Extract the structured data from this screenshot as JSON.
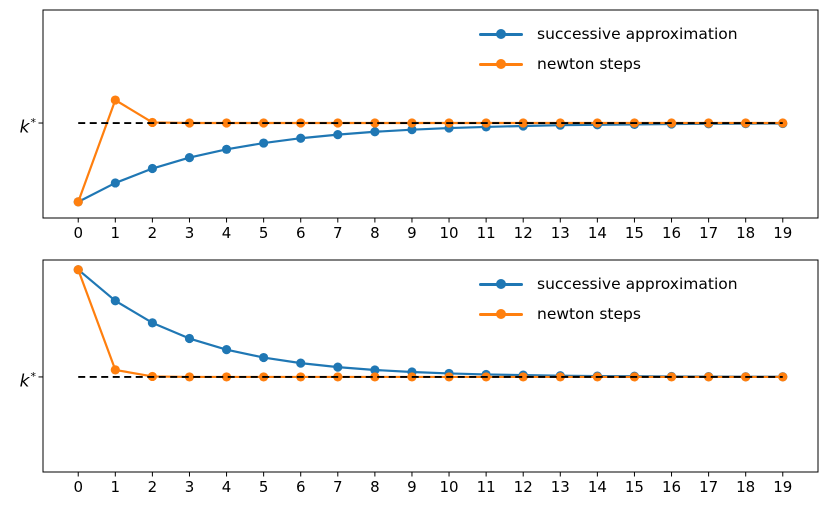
{
  "figure": {
    "background": "#ffffff",
    "text_color": "#000000",
    "ylabel_base": "k",
    "ylabel_sup": "*"
  },
  "chart_data": [
    {
      "type": "line",
      "title": "",
      "xlabel": "",
      "ylabel": "k*",
      "grid": false,
      "legend_position": "upper right",
      "x": [
        0,
        1,
        2,
        3,
        4,
        5,
        6,
        7,
        8,
        9,
        10,
        11,
        12,
        13,
        14,
        15,
        16,
        17,
        18,
        19
      ],
      "xticks": [
        "0",
        "1",
        "2",
        "3",
        "4",
        "5",
        "6",
        "7",
        "8",
        "9",
        "10",
        "11",
        "12",
        "13",
        "14",
        "15",
        "16",
        "17",
        "18",
        "19"
      ],
      "ylim": [
        0,
        2.19
      ],
      "kstar_line": {
        "label": "k*",
        "value": 1.0,
        "style": "dashed",
        "color": "#000000"
      },
      "series": [
        {
          "name": "successive approximation",
          "color": "#1f77b4",
          "marker": "o",
          "values": [
            0.17,
            0.369,
            0.521,
            0.636,
            0.723,
            0.789,
            0.84,
            0.878,
            0.908,
            0.93,
            0.947,
            0.959,
            0.969,
            0.977,
            0.982,
            0.986,
            0.99,
            0.992,
            0.994,
            0.995
          ]
        },
        {
          "name": "newton steps",
          "color": "#ff7f0e",
          "marker": "o",
          "values": [
            0.17,
            1.242,
            1.006,
            1.0,
            1.0,
            1.0,
            1.0,
            1.0,
            1.0,
            1.0,
            1.0,
            1.0,
            1.0,
            1.0,
            1.0,
            1.0,
            1.0,
            1.0,
            1.0,
            1.0
          ]
        }
      ]
    },
    {
      "type": "line",
      "title": "",
      "xlabel": "",
      "ylabel": "k*",
      "grid": false,
      "legend_position": "upper right",
      "x": [
        0,
        1,
        2,
        3,
        4,
        5,
        6,
        7,
        8,
        9,
        10,
        11,
        12,
        13,
        14,
        15,
        16,
        17,
        18,
        19
      ],
      "xticks": [
        "0",
        "1",
        "2",
        "3",
        "4",
        "5",
        "6",
        "7",
        "8",
        "9",
        "10",
        "11",
        "12",
        "13",
        "14",
        "15",
        "16",
        "17",
        "18",
        "19"
      ],
      "ylim": [
        0,
        2.23
      ],
      "kstar_line": {
        "label": "k*",
        "value": 1.0,
        "style": "dashed",
        "color": "#000000"
      },
      "series": [
        {
          "name": "successive approximation",
          "color": "#1f77b4",
          "marker": "o",
          "values": [
            2.128,
            1.801,
            1.569,
            1.404,
            1.287,
            1.204,
            1.145,
            1.103,
            1.073,
            1.052,
            1.037,
            1.026,
            1.019,
            1.013,
            1.009,
            1.007,
            1.005,
            1.003,
            1.002,
            1.002
          ]
        },
        {
          "name": "newton steps",
          "color": "#ff7f0e",
          "marker": "o",
          "values": [
            2.128,
            1.074,
            1.005,
            1.0,
            1.0,
            1.0,
            1.0,
            1.0,
            1.0,
            1.0,
            1.0,
            1.0,
            1.0,
            1.0,
            1.0,
            1.0,
            1.0,
            1.0,
            1.0,
            1.0
          ]
        }
      ]
    }
  ]
}
